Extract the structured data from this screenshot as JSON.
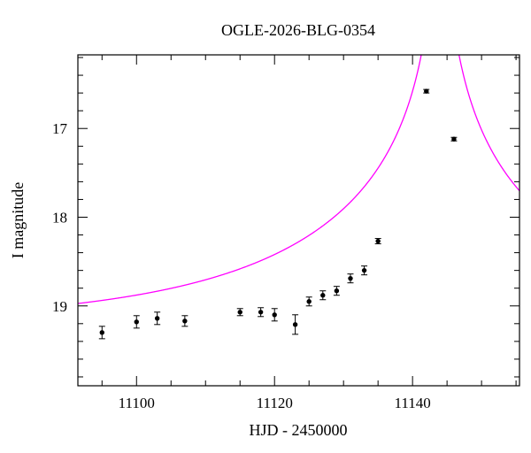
{
  "chart_data": {
    "type": "scatter",
    "title": "OGLE-2026-BLG-0354",
    "xlabel": "HJD - 2450000",
    "ylabel": "I magnitude",
    "xlim": [
      11091.5,
      11155.5
    ],
    "ylim": [
      19.9,
      16.17
    ],
    "y_inverted": true,
    "xticks": [
      11100,
      11120,
      11140
    ],
    "xtick_labels": [
      "11100",
      "11120",
      "11140"
    ],
    "yticks": [
      17,
      18,
      19
    ],
    "ytick_labels": [
      "17",
      "18",
      "19"
    ],
    "grid": false,
    "model_color": "#ff00ff",
    "point_color": "#000000",
    "series": [
      {
        "type": "scatter",
        "x": [
          11095,
          11100,
          11103,
          11107,
          11115,
          11118,
          11120,
          11123,
          11125,
          11127,
          11129,
          11131,
          11133,
          11135,
          11142,
          11146
        ],
        "y": [
          19.3,
          19.18,
          19.14,
          19.17,
          19.07,
          19.07,
          19.1,
          19.21,
          18.95,
          18.88,
          18.83,
          18.69,
          18.6,
          18.27,
          16.58,
          17.12
        ],
        "yerr": [
          0.07,
          0.07,
          0.07,
          0.06,
          0.04,
          0.05,
          0.07,
          0.11,
          0.05,
          0.05,
          0.05,
          0.05,
          0.05,
          0.03,
          0.02,
          0.02
        ]
      },
      {
        "type": "line",
        "model": "pspl",
        "baseline_mag": 19.21,
        "t0": 11144.0,
        "tE": 45,
        "u0": 0.003
      }
    ]
  }
}
